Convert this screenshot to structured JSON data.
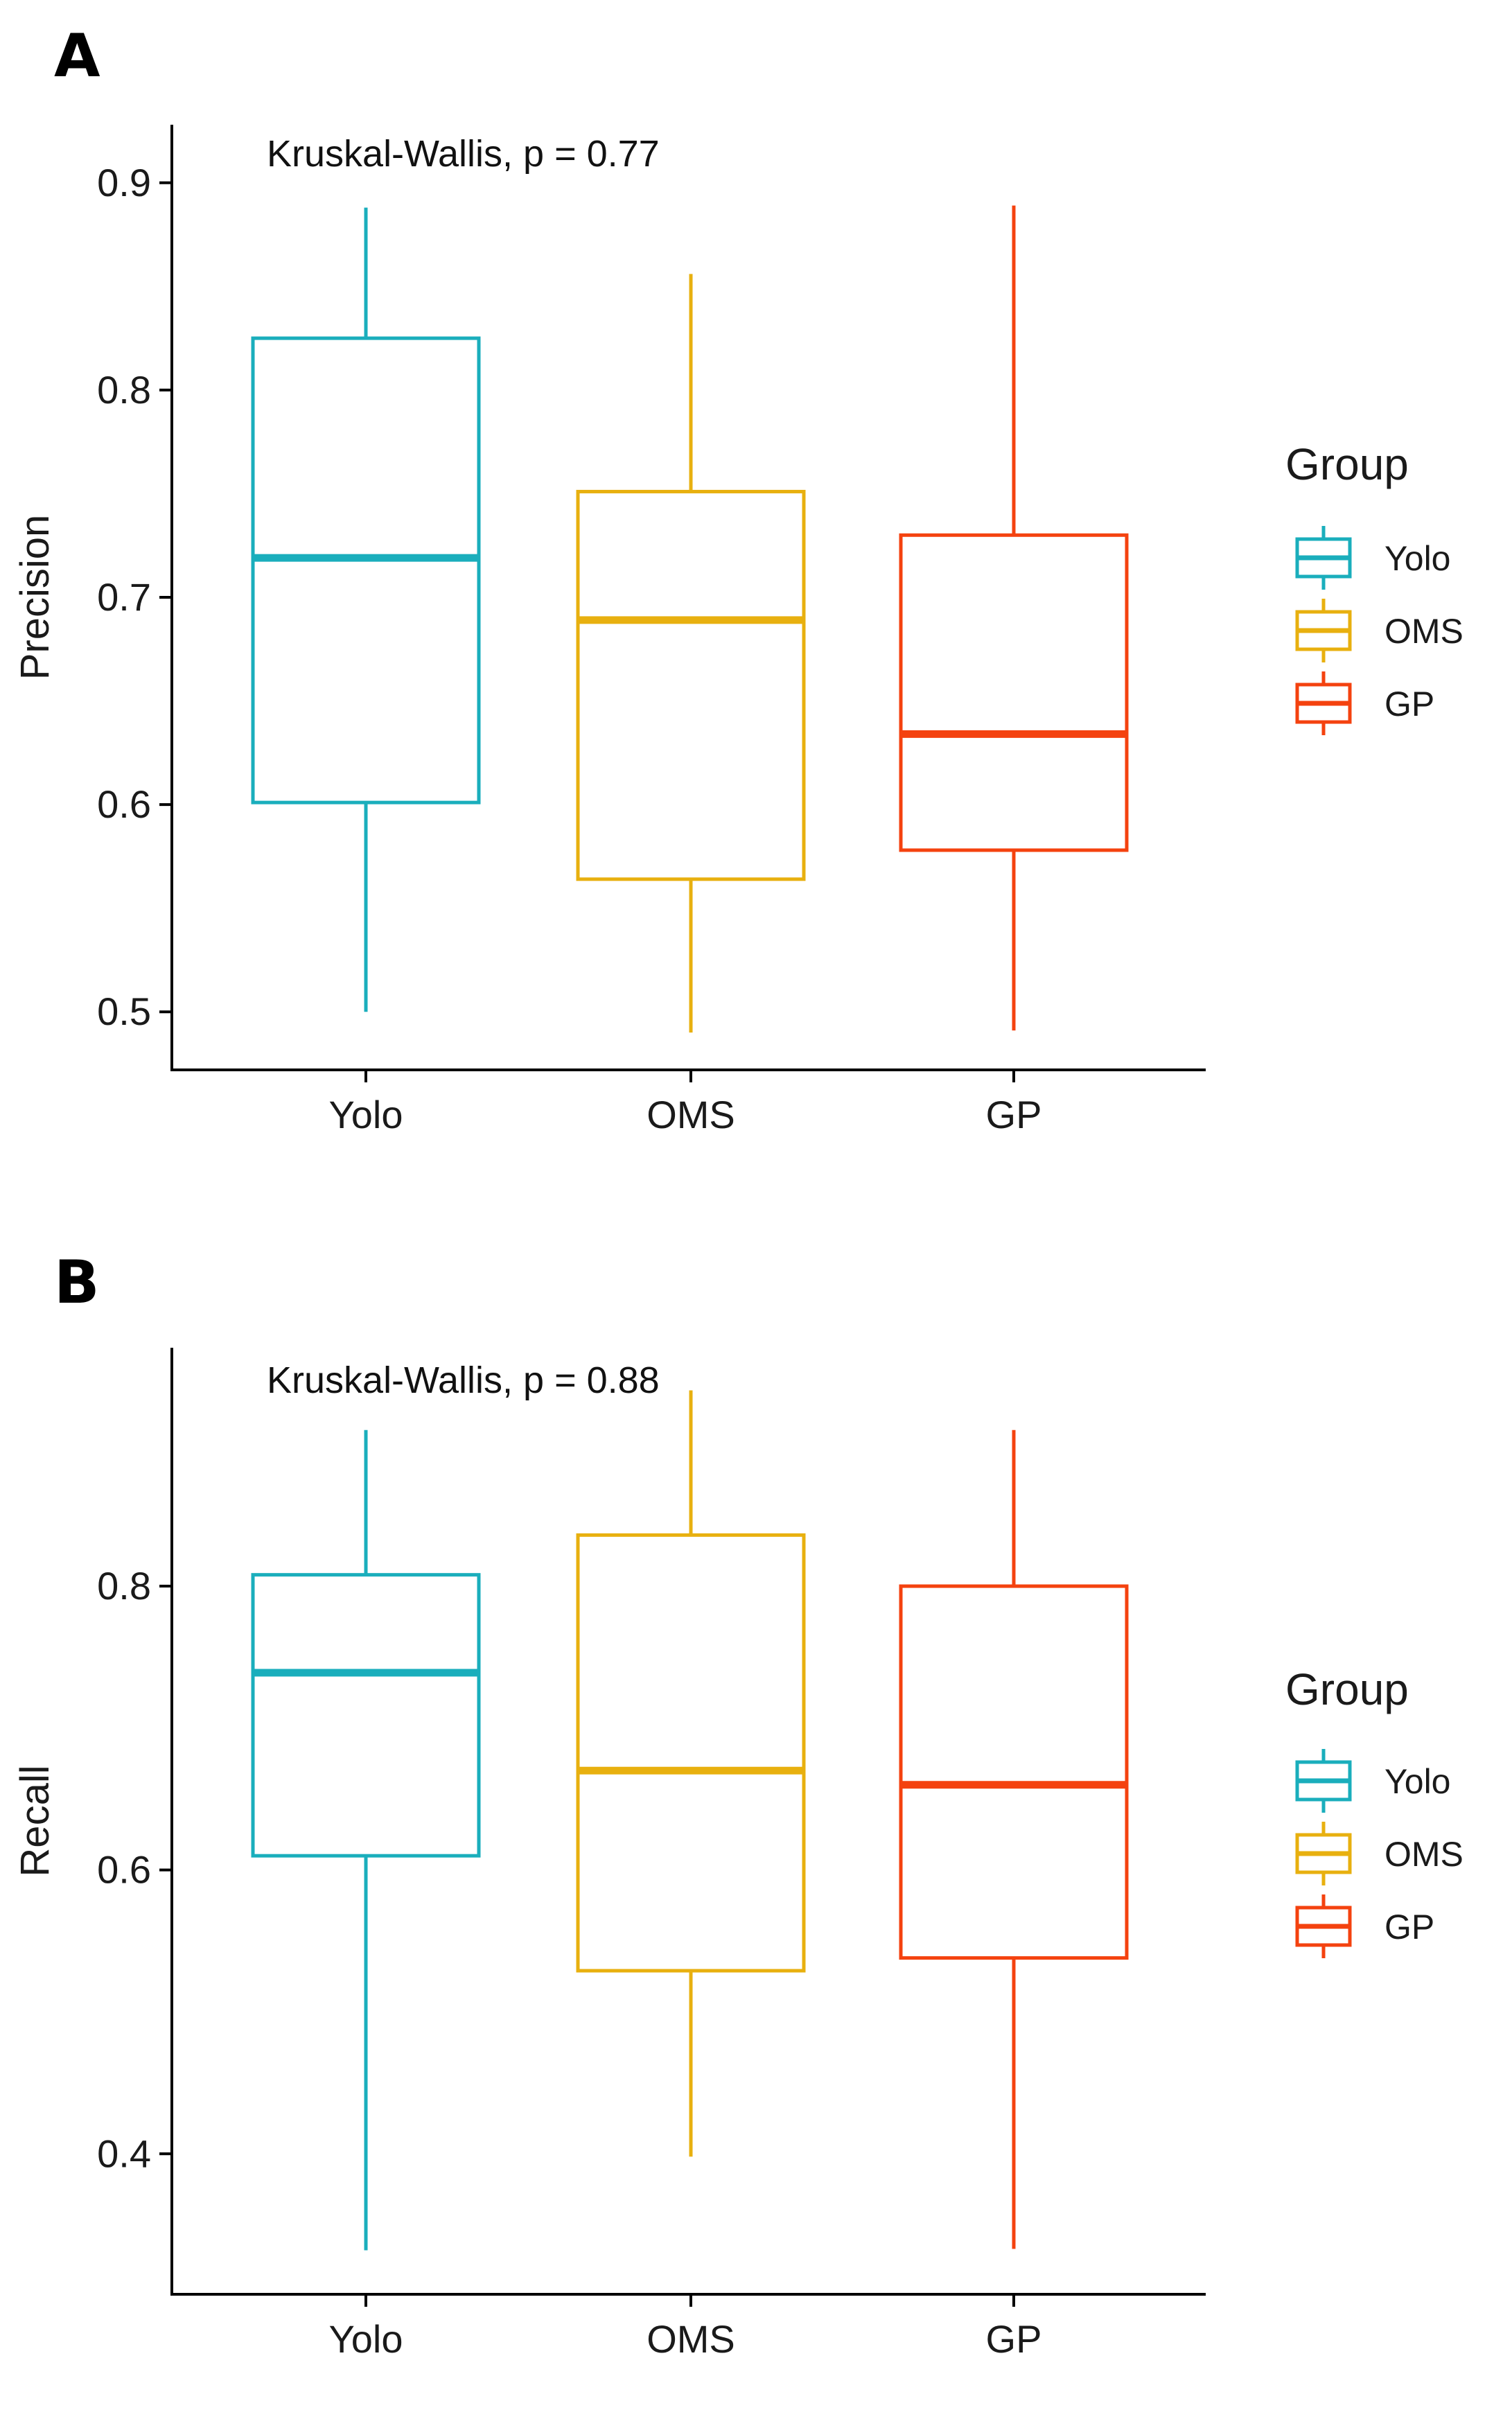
{
  "chart_data": [
    {
      "panel_label": "A",
      "type": "box",
      "annotation": "Kruskal-Wallis, p = 0.77",
      "ylabel": "Precision",
      "xlabel": "",
      "categories": [
        "Yolo",
        "OMS",
        "GP"
      ],
      "ylim": [
        0.472,
        0.928
      ],
      "yticks": [
        0.5,
        0.6,
        0.7,
        0.8,
        0.9
      ],
      "ytick_labels": [
        "0.5",
        "0.6",
        "0.7",
        "0.8",
        "0.9"
      ],
      "boxes": [
        {
          "name": "Yolo",
          "min": 0.5,
          "q1": 0.601,
          "median": 0.719,
          "q3": 0.825,
          "max": 0.888
        },
        {
          "name": "OMS",
          "min": 0.49,
          "q1": 0.564,
          "median": 0.689,
          "q3": 0.751,
          "max": 0.856
        },
        {
          "name": "GP",
          "min": 0.491,
          "q1": 0.578,
          "median": 0.634,
          "q3": 0.73,
          "max": 0.889
        }
      ],
      "grid": false,
      "legend": {
        "title": "Group",
        "position": "right",
        "entries": [
          "Yolo",
          "OMS",
          "GP"
        ]
      }
    },
    {
      "panel_label": "B",
      "type": "box",
      "annotation": "Kruskal-Wallis, p = 0.88",
      "ylabel": "Recall",
      "xlabel": "",
      "categories": [
        "Yolo",
        "OMS",
        "GP"
      ],
      "ylim": [
        0.301,
        0.968
      ],
      "yticks": [
        0.4,
        0.6,
        0.8
      ],
      "ytick_labels": [
        "0.4",
        "0.6",
        "0.8"
      ],
      "boxes": [
        {
          "name": "Yolo",
          "min": 0.332,
          "q1": 0.61,
          "median": 0.739,
          "q3": 0.808,
          "max": 0.91
        },
        {
          "name": "OMS",
          "min": 0.398,
          "q1": 0.529,
          "median": 0.67,
          "q3": 0.836,
          "max": 0.938
        },
        {
          "name": "GP",
          "min": 0.333,
          "q1": 0.538,
          "median": 0.66,
          "q3": 0.8,
          "max": 0.91
        }
      ],
      "grid": false,
      "legend": {
        "title": "Group",
        "position": "right",
        "entries": [
          "Yolo",
          "OMS",
          "GP"
        ]
      }
    }
  ],
  "colors": {
    "Yolo": "#1aaebc",
    "OMS": "#e8b00f",
    "GP": "#f4420f",
    "axis": "#000000"
  }
}
